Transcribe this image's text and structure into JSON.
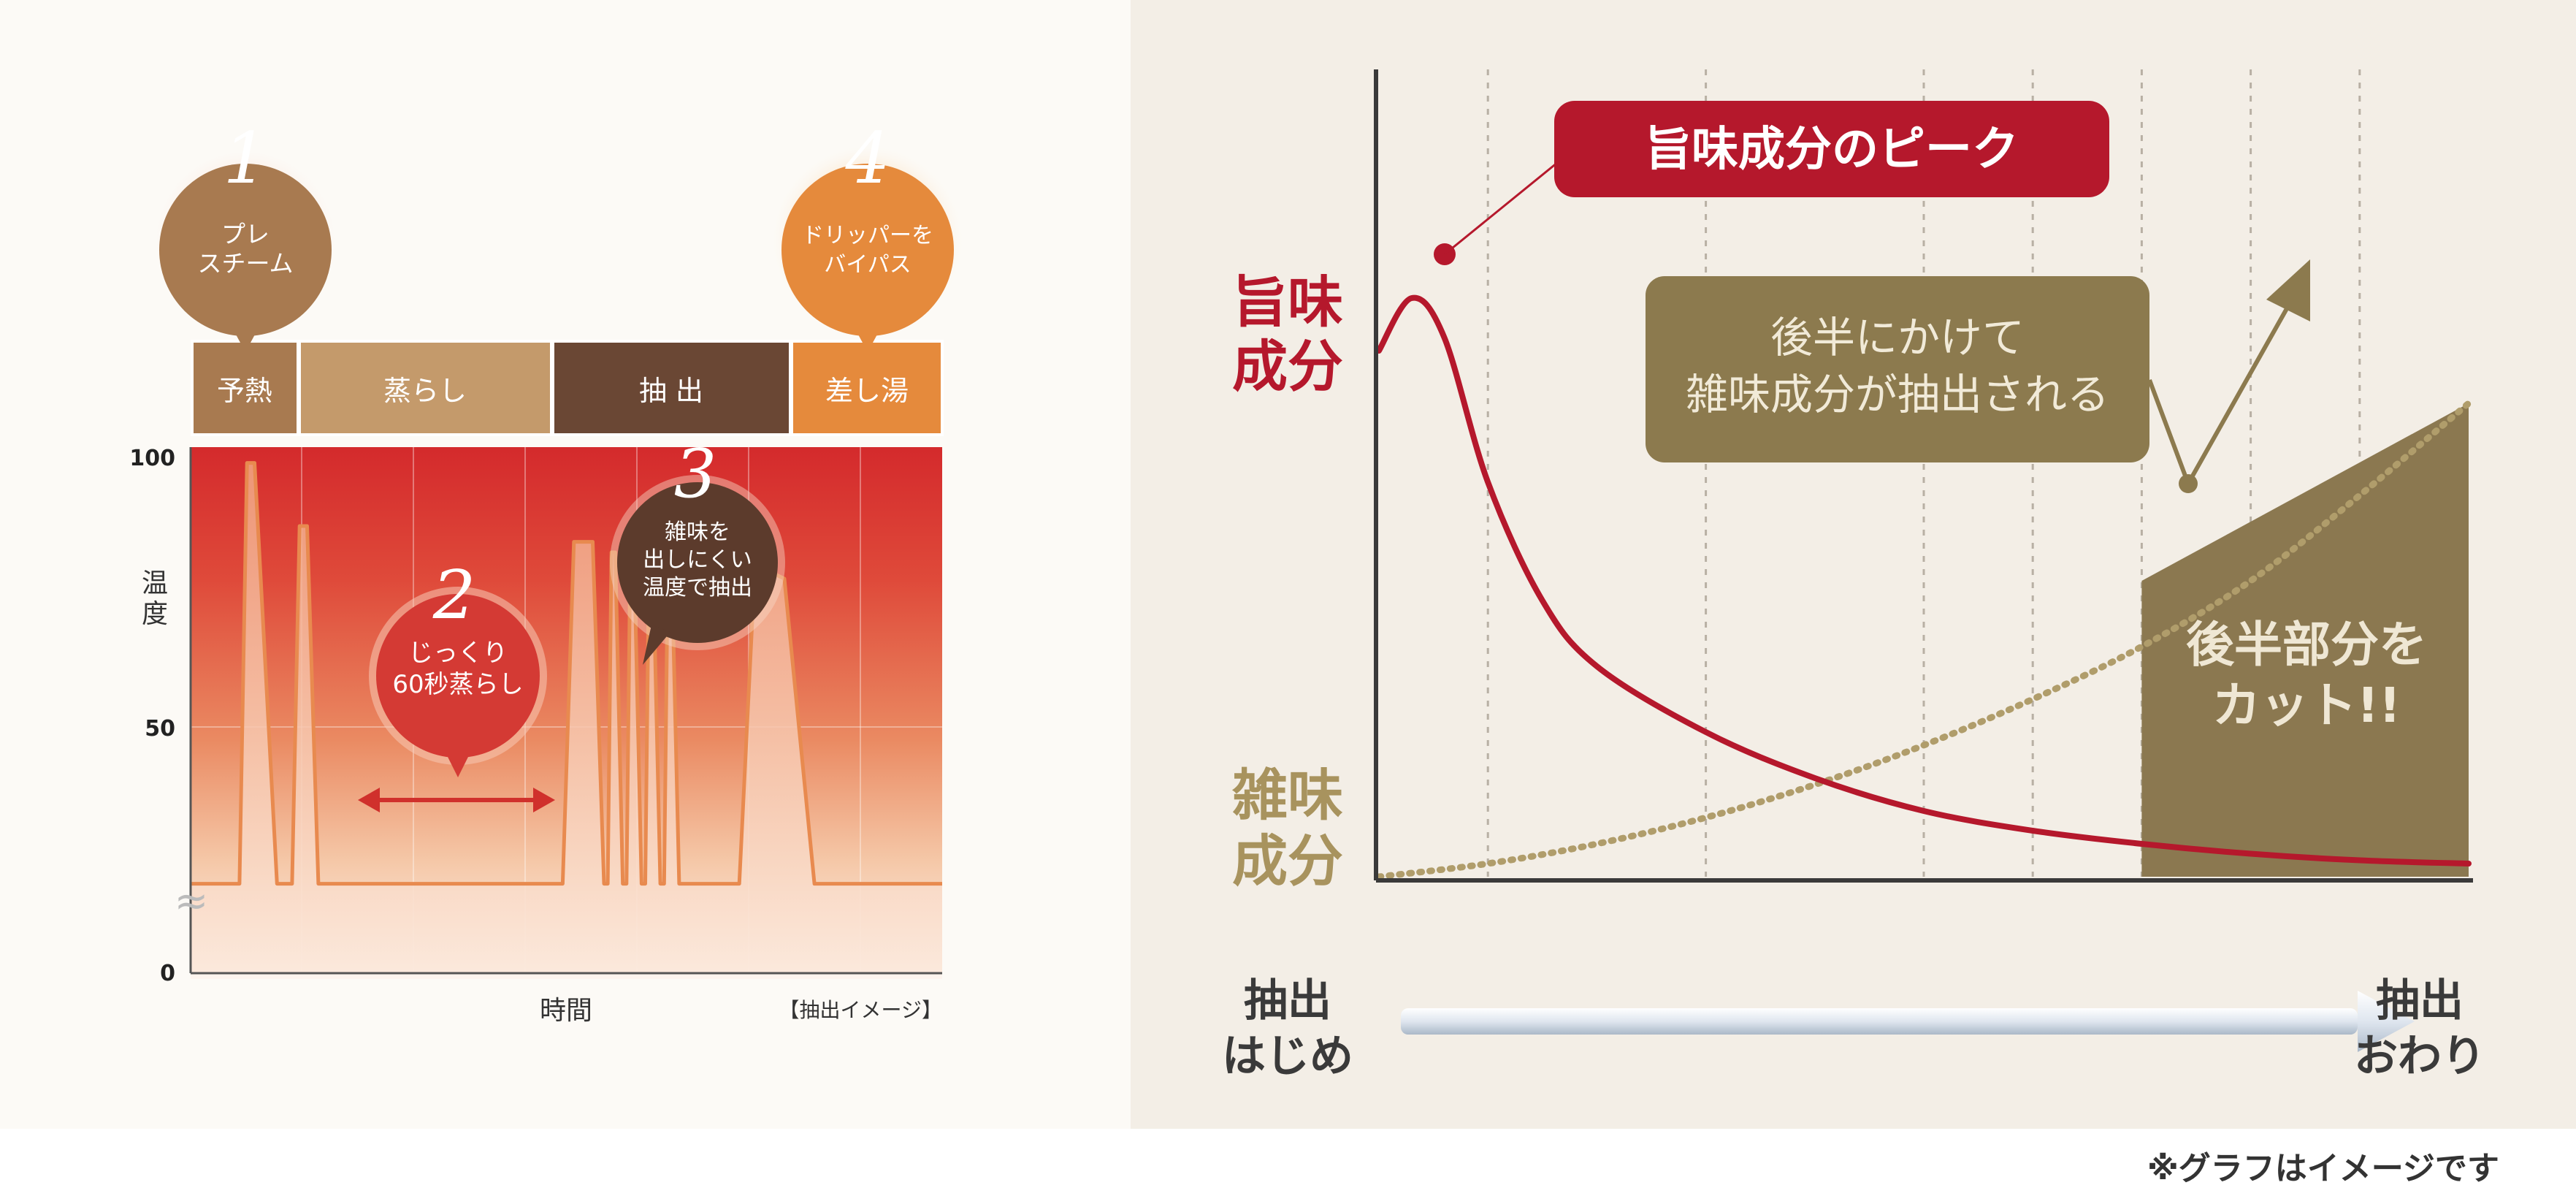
{
  "temperature_chart": {
    "y_label": "温度",
    "x_label": "時間",
    "caption": "【抽出イメージ】",
    "break_mark": "≈",
    "stages": [
      {
        "label": "予熱",
        "color": "#a87a50"
      },
      {
        "label": "蒸らし",
        "color": "#c49a6b"
      },
      {
        "label": "抽 出",
        "color": "#6a4734"
      },
      {
        "label": "差し湯",
        "color": "#e58a3c"
      }
    ],
    "bubbles": [
      {
        "num": "1",
        "line1": "プレ",
        "line2": "スチーム",
        "line3": "",
        "color": "#a87a50"
      },
      {
        "num": "2",
        "line1": "じっくり",
        "line2": "60秒蒸らし",
        "line3": "",
        "color": "#d43a34"
      },
      {
        "num": "3",
        "line1": "雑味を",
        "line2": "出しにくい",
        "line3": "温度で抽出",
        "color": "#5c3b2c"
      },
      {
        "num": "4",
        "line1": "ドリッパーを",
        "line2": "バイパス",
        "line3": "",
        "color": "#e58a3c"
      }
    ]
  },
  "chart_data": [
    {
      "type": "area",
      "y_axis_label": "温度",
      "x_axis_label": "時間",
      "yticks": [
        "100",
        "50",
        "0"
      ],
      "ylim": [
        0,
        100
      ],
      "x_units": "time (relative, 0-1)",
      "series": [
        {
          "x": [
            0,
            0.05,
            0.065,
            0.075,
            0.085,
            0.115,
            0.135,
            0.145,
            0.155,
            0.17,
            0.195,
            0.215,
            0.24,
            0.46,
            0.48,
            0.495,
            0.51,
            0.535,
            0.55,
            0.555,
            0.56,
            0.565,
            0.575,
            0.58,
            0.585,
            0.59,
            0.6,
            0.605,
            0.61,
            0.615,
            0.625,
            0.63,
            0.635,
            0.64,
            0.65,
            0.655,
            0.665,
            0.73,
            0.75,
            0.76,
            0.775,
            0.79,
            0.83,
            0.86,
            0.885,
            0.9,
            1.0
          ],
          "y": [
            17,
            17,
            17,
            97,
            97,
            17,
            17,
            85,
            85,
            17,
            17,
            17,
            17,
            17,
            17,
            17,
            82,
            82,
            17,
            17,
            80,
            80,
            17,
            17,
            80,
            80,
            17,
            17,
            80,
            80,
            17,
            17,
            78,
            78,
            17,
            17,
            17,
            17,
            75,
            76,
            76,
            75,
            17,
            17,
            17,
            17,
            17
          ]
        }
      ]
    },
    {
      "type": "line",
      "series": [
        {
          "name": "旨味成分",
          "x": [
            0,
            0.03,
            0.06,
            0.1,
            0.15,
            0.2,
            0.3,
            0.4,
            0.5,
            0.6,
            0.7,
            0.8,
            0.9,
            1.0
          ],
          "y": [
            80,
            88,
            82,
            60,
            42,
            32,
            22,
            15,
            10,
            7,
            5,
            3.5,
            2.5,
            2
          ]
        },
        {
          "name": "雑味成分",
          "x": [
            0,
            0.1,
            0.2,
            0.3,
            0.4,
            0.5,
            0.6,
            0.7,
            0.8,
            0.9,
            1.0
          ],
          "y": [
            0,
            2,
            5,
            9,
            14,
            20,
            27,
            35,
            45,
            58,
            72
          ]
        }
      ],
      "labels": {
        "peak": "旨味成分のピーク",
        "late": "後半にかけて\n雑味成分が抽出される",
        "cut": "後半部分を\nカット!!",
        "y_top": "旨味\n成分",
        "y_bottom": "雑味\n成分",
        "x_start": "抽出\nはじめ",
        "x_end": "抽出\nおわり"
      },
      "shaded_region_x": [
        0.7,
        1.0
      ]
    }
  ],
  "right_chart": {
    "peak_label": "旨味成分のピーク",
    "late_label_1": "後半にかけて",
    "late_label_2": "雑味成分が抽出される",
    "cut_label_1": "後半部分を",
    "cut_label_2": "カット!!",
    "y_top_1": "旨味",
    "y_top_2": "成分",
    "y_bottom_1": "雑味",
    "y_bottom_2": "成分",
    "x_start_1": "抽出",
    "x_start_2": "はじめ",
    "x_end_1": "抽出",
    "x_end_2": "おわり",
    "colors": {
      "red": "#b5182c",
      "olive": "#8c7a4e",
      "shade": "#8b7850"
    }
  },
  "footnote": "※グラフはイメージです"
}
